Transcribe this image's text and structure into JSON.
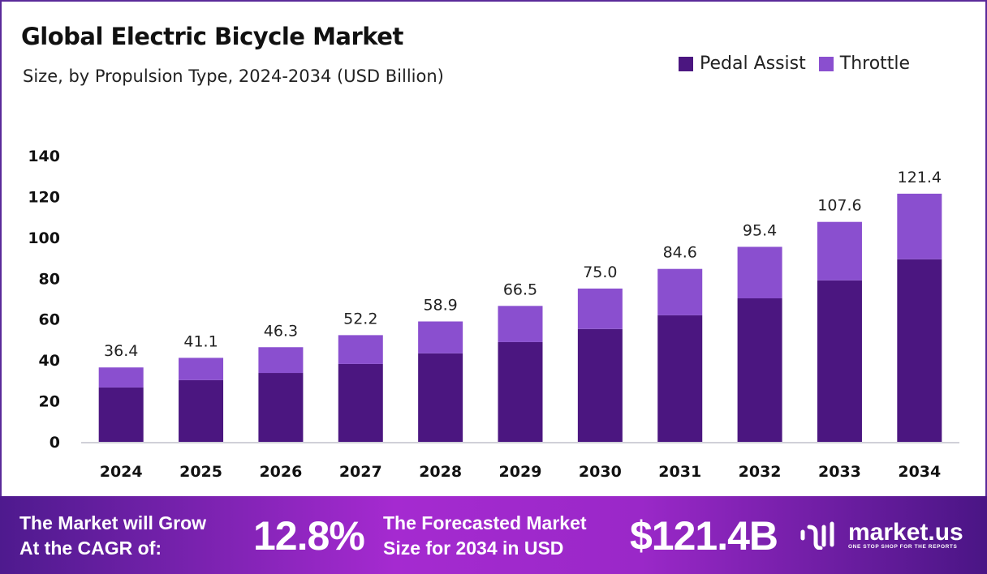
{
  "chart_data": {
    "type": "bar",
    "stacked": true,
    "title": "Global Electric Bicycle Market",
    "subtitle": "Size, by Propulsion Type, 2024-2034 (USD Billion)",
    "categories": [
      "2024",
      "2025",
      "2026",
      "2027",
      "2028",
      "2029",
      "2030",
      "2031",
      "2032",
      "2033",
      "2034"
    ],
    "series": [
      {
        "name": "Pedal Assist",
        "color": "#4b1680",
        "values": [
          26.6,
          30.2,
          33.7,
          38.1,
          43.3,
          48.8,
          55.2,
          61.9,
          70.2,
          79.0,
          89.3
        ]
      },
      {
        "name": "Throttle",
        "color": "#8a4fcf",
        "values": [
          9.8,
          10.9,
          12.6,
          14.1,
          15.6,
          17.7,
          19.8,
          22.7,
          25.2,
          28.6,
          32.1
        ]
      }
    ],
    "totals": [
      "36.4",
      "41.1",
      "46.3",
      "52.2",
      "58.9",
      "66.5",
      "75.0",
      "84.6",
      "95.4",
      "107.6",
      "121.4"
    ],
    "ylim": [
      0,
      140
    ],
    "yticks": [
      "0",
      "20",
      "40",
      "60",
      "80",
      "100",
      "120",
      "140"
    ],
    "grid": false,
    "legend_position": "top-right"
  },
  "footer": {
    "cagr_label_1": "The Market will Grow",
    "cagr_label_2": "At the CAGR of:",
    "cagr_value": "12.8%",
    "forecast_label_1": "The Forecasted Market",
    "forecast_label_2": "Size for 2034 in USD",
    "forecast_value": "$121.4B",
    "logo_text": "market.us",
    "logo_tagline": "ONE STOP SHOP FOR THE REPORTS"
  }
}
